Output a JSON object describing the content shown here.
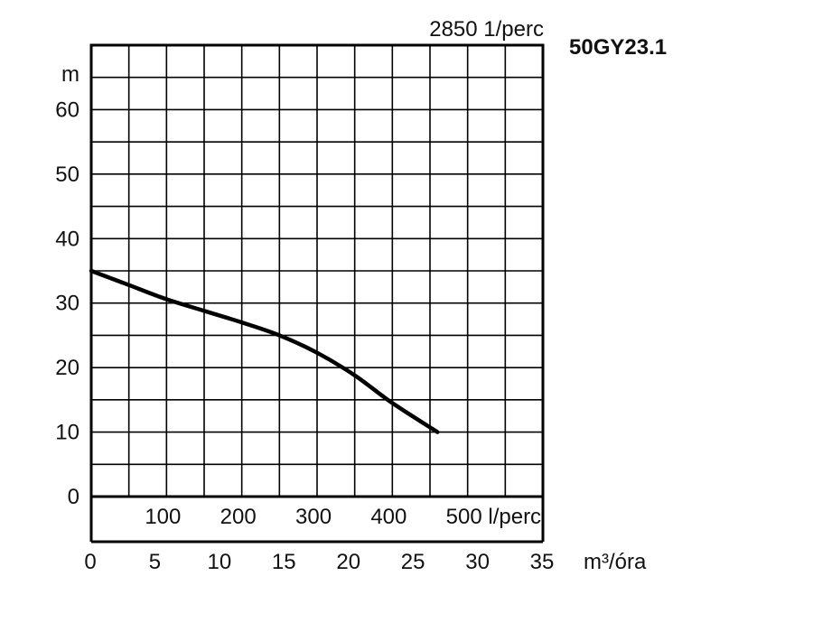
{
  "chart_data": {
    "type": "line",
    "title": "2850 1/perc",
    "model": "50GY23.1",
    "ylabel": "m",
    "ylim": [
      0,
      70
    ],
    "yticks": [
      "0",
      "10",
      "20",
      "30",
      "40",
      "50",
      "60"
    ],
    "x_lpm": {
      "ticks": [
        "100",
        "200",
        "300",
        "400",
        "500 l/perc"
      ],
      "xlim": [
        0,
        600
      ]
    },
    "x_m3h": {
      "label": "m³/óra",
      "ticks": [
        "0",
        "5",
        "10",
        "15",
        "20",
        "25",
        "30",
        "35"
      ],
      "xlim": [
        0,
        35
      ]
    },
    "grid": true,
    "series": [
      {
        "x": [
          0,
          50,
          100,
          150,
          200,
          250,
          300,
          350,
          400,
          460
        ],
        "values": [
          35,
          32.8,
          30.6,
          28.8,
          27,
          25,
          22.3,
          18.8,
          14.5,
          10
        ]
      }
    ]
  }
}
